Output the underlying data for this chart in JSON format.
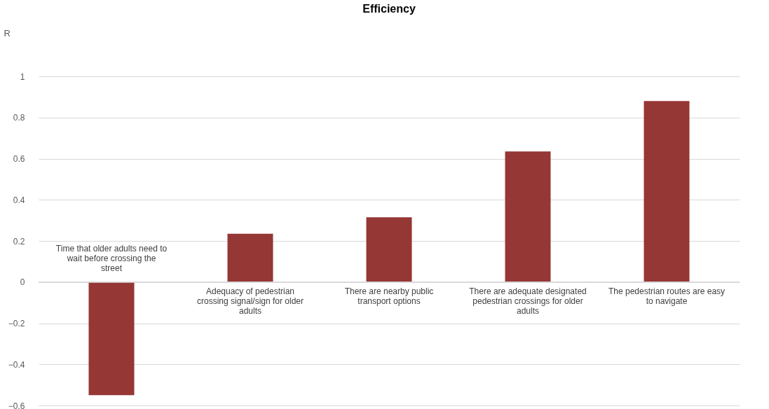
{
  "chart_data": {
    "type": "bar",
    "title": "Efficiency",
    "ylabel": "R",
    "categories": [
      "Time that older adults need to wait before crossing the street",
      "Adequacy of pedestrian crossing signal/sign for older adults",
      "There are nearby public transport options",
      "There are adequate designated pedestrian crossings for older adults",
      "The pedestrian routes are easy to navigate"
    ],
    "values": [
      -0.55,
      0.235,
      0.315,
      0.635,
      0.88
    ],
    "color": "#953735",
    "ylim": [
      -0.6,
      1
    ],
    "yticks": [
      -0.6,
      -0.4,
      -0.2,
      0,
      0.2,
      0.4,
      0.6,
      0.8,
      1
    ],
    "grid": "y"
  }
}
